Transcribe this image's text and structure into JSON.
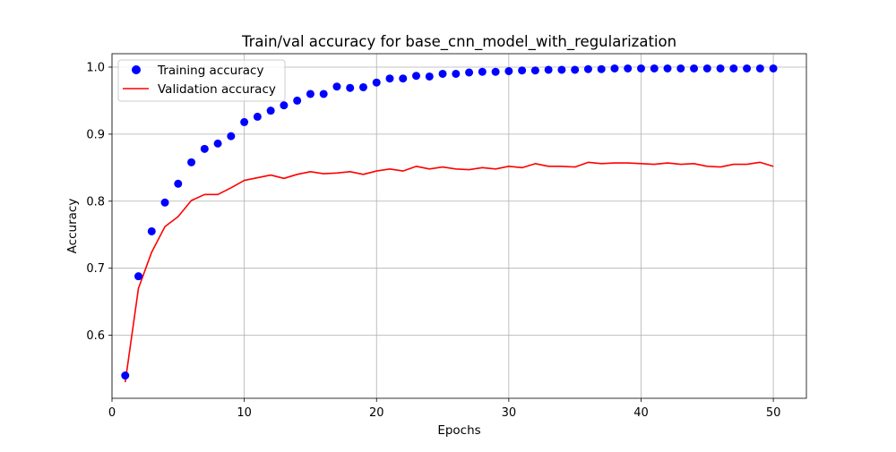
{
  "chart_data": {
    "type": "line",
    "title": "Train/val accuracy for base_cnn_model_with_regularization",
    "xlabel": "Epochs",
    "ylabel": "Accuracy",
    "xlim": [
      0,
      52.5
    ],
    "ylim": [
      0.506,
      1.02
    ],
    "xticks": [
      0,
      10,
      20,
      30,
      40,
      50
    ],
    "xtick_labels": [
      "0",
      "10",
      "20",
      "30",
      "40",
      "50"
    ],
    "yticks": [
      0.6,
      0.7,
      0.8,
      0.9,
      1.0
    ],
    "ytick_labels": [
      "0.6",
      "0.7",
      "0.8",
      "0.9",
      "1.0"
    ],
    "grid": true,
    "legend_position": "top-left",
    "x": [
      1,
      2,
      3,
      4,
      5,
      6,
      7,
      8,
      9,
      10,
      11,
      12,
      13,
      14,
      15,
      16,
      17,
      18,
      19,
      20,
      21,
      22,
      23,
      24,
      25,
      26,
      27,
      28,
      29,
      30,
      31,
      32,
      33,
      34,
      35,
      36,
      37,
      38,
      39,
      40,
      41,
      42,
      43,
      44,
      45,
      46,
      47,
      48,
      49,
      50
    ],
    "series": [
      {
        "name": "Training accuracy",
        "style": "scatter",
        "color": "#0000ff",
        "values": [
          0.54,
          0.688,
          0.755,
          0.798,
          0.826,
          0.858,
          0.878,
          0.886,
          0.897,
          0.918,
          0.926,
          0.935,
          0.943,
          0.95,
          0.96,
          0.96,
          0.971,
          0.969,
          0.97,
          0.977,
          0.983,
          0.983,
          0.987,
          0.986,
          0.99,
          0.99,
          0.992,
          0.993,
          0.993,
          0.994,
          0.995,
          0.995,
          0.996,
          0.996,
          0.996,
          0.997,
          0.997,
          0.998,
          0.998,
          0.998,
          0.998,
          0.998,
          0.998,
          0.998,
          0.998,
          0.998,
          0.998,
          0.998,
          0.998,
          0.998
        ]
      },
      {
        "name": "Validation accuracy",
        "style": "line",
        "color": "#ff0000",
        "values": [
          0.53,
          0.67,
          0.724,
          0.762,
          0.777,
          0.801,
          0.81,
          0.81,
          0.82,
          0.831,
          0.835,
          0.839,
          0.834,
          0.84,
          0.844,
          0.841,
          0.842,
          0.844,
          0.84,
          0.845,
          0.848,
          0.845,
          0.852,
          0.848,
          0.851,
          0.848,
          0.847,
          0.85,
          0.848,
          0.852,
          0.85,
          0.856,
          0.852,
          0.852,
          0.851,
          0.858,
          0.856,
          0.857,
          0.857,
          0.856,
          0.855,
          0.857,
          0.855,
          0.856,
          0.852,
          0.851,
          0.855,
          0.855,
          0.858,
          0.852
        ]
      }
    ]
  }
}
